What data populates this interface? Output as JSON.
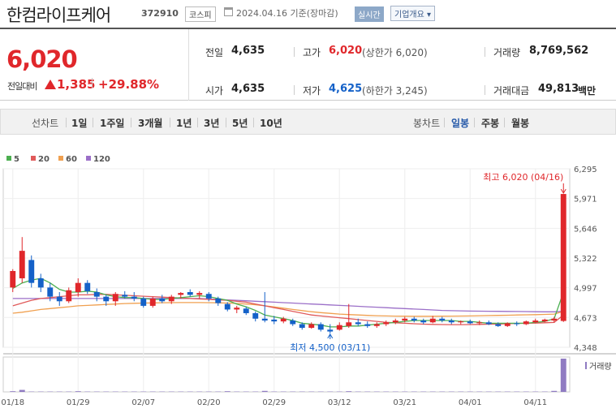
{
  "header": {
    "name": "한컴라이프케어",
    "code": "372910",
    "market": "코스피",
    "date_label": "2024.04.16 기준(장마감)",
    "realtime_label": "실시간",
    "company_info_label": "기업개요 ▾"
  },
  "quote": {
    "price": "6,020",
    "compare_label": "전일대비",
    "change": "1,385",
    "change_pct": "+29.88%",
    "prev_close_label": "전일",
    "prev_close": "4,635",
    "open_label": "시가",
    "open": "4,635",
    "high_label": "고가",
    "high": "6,020",
    "upper_limit": "(상한가 6,020)",
    "low_label": "저가",
    "low": "4,625",
    "lower_limit": "(하한가 3,245)",
    "volume_label": "거래량",
    "volume": "8,769,562",
    "amount_label": "거래대금",
    "amount": "49,813",
    "amount_unit": "백만"
  },
  "toolbar": {
    "line_label": "선차트",
    "periods": [
      "1일",
      "1주일",
      "3개월",
      "1년",
      "3년",
      "5년",
      "10년"
    ],
    "candle_label": "봉차트",
    "candles": [
      "일봉",
      "주봉",
      "월봉"
    ],
    "active_candle": "일봉"
  },
  "chart_data": {
    "type": "candlestick",
    "legend": [
      {
        "name": "5",
        "color": "#4caf50"
      },
      {
        "name": "20",
        "color": "#e05a5a"
      },
      {
        "name": "60",
        "color": "#f0a050"
      },
      {
        "name": "120",
        "color": "#9b6fc8"
      }
    ],
    "y_ticks": [
      6295,
      5971,
      5646,
      5322,
      4997,
      4673,
      4348
    ],
    "y_tick_labels": [
      "6,295",
      "5,971",
      "5,646",
      "5,322",
      "4,997",
      "4,673",
      "4,348"
    ],
    "ylim": [
      4348,
      6295
    ],
    "x_tick_labels": [
      "01/18",
      "01/29",
      "02/07",
      "02/20",
      "02/29",
      "03/12",
      "03/21",
      "04/01",
      "04/11"
    ],
    "x_tick_index": [
      0,
      7,
      14,
      21,
      28,
      35,
      42,
      49,
      56
    ],
    "high_annotation": "최고 6,020 (04/16)",
    "low_annotation": "최저 4,500 (03/11)",
    "volume_label": "거래량",
    "up_color": "#e0272b",
    "down_color": "#1461c8",
    "candles": [
      {
        "o": 5000,
        "h": 5200,
        "l": 4950,
        "c": 5180
      },
      {
        "o": 5100,
        "h": 5550,
        "l": 5050,
        "c": 5400
      },
      {
        "o": 5300,
        "h": 5350,
        "l": 5000,
        "c": 5050
      },
      {
        "o": 5100,
        "h": 5150,
        "l": 4950,
        "c": 5000
      },
      {
        "o": 5000,
        "h": 5050,
        "l": 4850,
        "c": 4900
      },
      {
        "o": 4900,
        "h": 4950,
        "l": 4800,
        "c": 4850
      },
      {
        "o": 4850,
        "h": 5000,
        "l": 4830,
        "c": 4970
      },
      {
        "o": 4950,
        "h": 5100,
        "l": 4900,
        "c": 5050
      },
      {
        "o": 5050,
        "h": 5080,
        "l": 4930,
        "c": 4960
      },
      {
        "o": 4950,
        "h": 4990,
        "l": 4850,
        "c": 4900
      },
      {
        "o": 4900,
        "h": 4920,
        "l": 4800,
        "c": 4850
      },
      {
        "o": 4850,
        "h": 4950,
        "l": 4800,
        "c": 4930
      },
      {
        "o": 4920,
        "h": 4960,
        "l": 4880,
        "c": 4900
      },
      {
        "o": 4900,
        "h": 4950,
        "l": 4850,
        "c": 4880
      },
      {
        "o": 4880,
        "h": 4900,
        "l": 4780,
        "c": 4800
      },
      {
        "o": 4800,
        "h": 4900,
        "l": 4780,
        "c": 4880
      },
      {
        "o": 4880,
        "h": 4920,
        "l": 4830,
        "c": 4850
      },
      {
        "o": 4850,
        "h": 4920,
        "l": 4820,
        "c": 4900
      },
      {
        "o": 4920,
        "h": 4950,
        "l": 4880,
        "c": 4940
      },
      {
        "o": 4950,
        "h": 4980,
        "l": 4900,
        "c": 4920
      },
      {
        "o": 4920,
        "h": 4960,
        "l": 4880,
        "c": 4940
      },
      {
        "o": 4930,
        "h": 4950,
        "l": 4850,
        "c": 4880
      },
      {
        "o": 4880,
        "h": 4900,
        "l": 4800,
        "c": 4830
      },
      {
        "o": 4820,
        "h": 4840,
        "l": 4740,
        "c": 4760
      },
      {
        "o": 4760,
        "h": 4800,
        "l": 4720,
        "c": 4780
      },
      {
        "o": 4770,
        "h": 4790,
        "l": 4700,
        "c": 4720
      },
      {
        "o": 4720,
        "h": 4740,
        "l": 4630,
        "c": 4660
      },
      {
        "o": 4660,
        "h": 4950,
        "l": 4620,
        "c": 4640
      },
      {
        "o": 4650,
        "h": 4690,
        "l": 4600,
        "c": 4630
      },
      {
        "o": 4630,
        "h": 4680,
        "l": 4610,
        "c": 4660
      },
      {
        "o": 4640,
        "h": 4660,
        "l": 4580,
        "c": 4600
      },
      {
        "o": 4600,
        "h": 4620,
        "l": 4540,
        "c": 4560
      },
      {
        "o": 4560,
        "h": 4620,
        "l": 4550,
        "c": 4600
      },
      {
        "o": 4600,
        "h": 4620,
        "l": 4520,
        "c": 4540
      },
      {
        "o": 4540,
        "h": 4600,
        "l": 4500,
        "c": 4520
      },
      {
        "o": 4540,
        "h": 4620,
        "l": 4530,
        "c": 4590
      },
      {
        "o": 4580,
        "h": 4820,
        "l": 4560,
        "c": 4620
      },
      {
        "o": 4620,
        "h": 4660,
        "l": 4580,
        "c": 4600
      },
      {
        "o": 4600,
        "h": 4630,
        "l": 4560,
        "c": 4580
      },
      {
        "o": 4580,
        "h": 4620,
        "l": 4560,
        "c": 4600
      },
      {
        "o": 4600,
        "h": 4640,
        "l": 4580,
        "c": 4620
      },
      {
        "o": 4620,
        "h": 4660,
        "l": 4600,
        "c": 4640
      },
      {
        "o": 4640,
        "h": 4680,
        "l": 4620,
        "c": 4660
      },
      {
        "o": 4660,
        "h": 4680,
        "l": 4620,
        "c": 4640
      },
      {
        "o": 4640,
        "h": 4660,
        "l": 4600,
        "c": 4620
      },
      {
        "o": 4620,
        "h": 4690,
        "l": 4610,
        "c": 4660
      },
      {
        "o": 4660,
        "h": 4680,
        "l": 4620,
        "c": 4640
      },
      {
        "o": 4640,
        "h": 4660,
        "l": 4600,
        "c": 4620
      },
      {
        "o": 4620,
        "h": 4640,
        "l": 4600,
        "c": 4630
      },
      {
        "o": 4630,
        "h": 4650,
        "l": 4600,
        "c": 4610
      },
      {
        "o": 4610,
        "h": 4640,
        "l": 4590,
        "c": 4620
      },
      {
        "o": 4620,
        "h": 4640,
        "l": 4590,
        "c": 4600
      },
      {
        "o": 4600,
        "h": 4620,
        "l": 4570,
        "c": 4580
      },
      {
        "o": 4580,
        "h": 4620,
        "l": 4570,
        "c": 4610
      },
      {
        "o": 4610,
        "h": 4630,
        "l": 4580,
        "c": 4600
      },
      {
        "o": 4600,
        "h": 4640,
        "l": 4590,
        "c": 4630
      },
      {
        "o": 4620,
        "h": 4660,
        "l": 4610,
        "c": 4640
      },
      {
        "o": 4630,
        "h": 4660,
        "l": 4620,
        "c": 4650
      },
      {
        "o": 4640,
        "h": 4680,
        "l": 4620,
        "c": 4660
      },
      {
        "o": 4635,
        "h": 6020,
        "l": 4625,
        "c": 6020
      }
    ],
    "ma5": [
      4990,
      5050,
      5080,
      5100,
      5050,
      4980,
      4950,
      4950,
      4960,
      4950,
      4920,
      4900,
      4890,
      4890,
      4880,
      4870,
      4870,
      4880,
      4890,
      4900,
      4910,
      4900,
      4880,
      4860,
      4820,
      4790,
      4750,
      4700,
      4680,
      4660,
      4640,
      4610,
      4600,
      4590,
      4570,
      4570,
      4580,
      4580,
      4590,
      4600,
      4610,
      4620,
      4630,
      4640,
      4640,
      4640,
      4640,
      4640,
      4630,
      4630,
      4620,
      4610,
      4610,
      4610,
      4610,
      4610,
      4620,
      4630,
      4660,
      4950
    ],
    "ma20": [
      4800,
      4830,
      4860,
      4880,
      4890,
      4900,
      4910,
      4920,
      4920,
      4925,
      4925,
      4920,
      4915,
      4910,
      4905,
      4900,
      4895,
      4890,
      4885,
      4880,
      4875,
      4870,
      4865,
      4860,
      4850,
      4840,
      4820,
      4800,
      4780,
      4760,
      4740,
      4720,
      4700,
      4690,
      4680,
      4670,
      4660,
      4650,
      4640,
      4630,
      4620,
      4615,
      4610,
      4605,
      4600,
      4598,
      4596,
      4595,
      4595,
      4596,
      4598,
      4600,
      4602,
      4605,
      4608,
      4610,
      4612,
      4615,
      4620,
      4700
    ],
    "ma60": [
      4720,
      4730,
      4745,
      4760,
      4770,
      4780,
      4790,
      4800,
      4805,
      4810,
      4815,
      4820,
      4825,
      4828,
      4830,
      4832,
      4834,
      4835,
      4836,
      4836,
      4836,
      4835,
      4833,
      4830,
      4826,
      4820,
      4812,
      4800,
      4788,
      4775,
      4760,
      4748,
      4736,
      4726,
      4718,
      4710,
      4705,
      4700,
      4696,
      4692,
      4690,
      4688,
      4687,
      4686,
      4686,
      4686,
      4687,
      4688,
      4689,
      4690,
      4692,
      4694,
      4696,
      4698,
      4700,
      4702,
      4704,
      4706,
      4710,
      4740
    ],
    "ma120": [
      4880,
      4880,
      4880,
      4880,
      4880,
      4880,
      4880,
      4880,
      4880,
      4880,
      4880,
      4880,
      4880,
      4880,
      4880,
      4880,
      4880,
      4880,
      4880,
      4880,
      4880,
      4875,
      4870,
      4865,
      4860,
      4855,
      4850,
      4845,
      4840,
      4835,
      4830,
      4825,
      4820,
      4815,
      4810,
      4805,
      4800,
      4795,
      4790,
      4785,
      4780,
      4775,
      4770,
      4765,
      4760,
      4755,
      4750,
      4747,
      4745,
      4743,
      4742,
      4741,
      4740,
      4739,
      4738,
      4737,
      4736,
      4735,
      4735,
      4740
    ],
    "volumes": [
      2,
      6,
      1,
      1,
      1,
      1,
      1,
      2,
      1,
      1,
      1,
      1,
      1,
      1,
      1,
      1,
      1,
      1,
      1,
      1,
      1,
      1,
      1,
      2,
      1,
      1,
      1,
      3,
      1,
      1,
      1,
      1,
      1,
      1,
      1,
      1,
      2,
      1,
      1,
      1,
      1,
      1,
      1,
      1,
      1,
      1,
      1,
      1,
      1,
      1,
      1,
      1,
      1,
      1,
      1,
      1,
      1,
      1,
      3,
      100
    ]
  }
}
